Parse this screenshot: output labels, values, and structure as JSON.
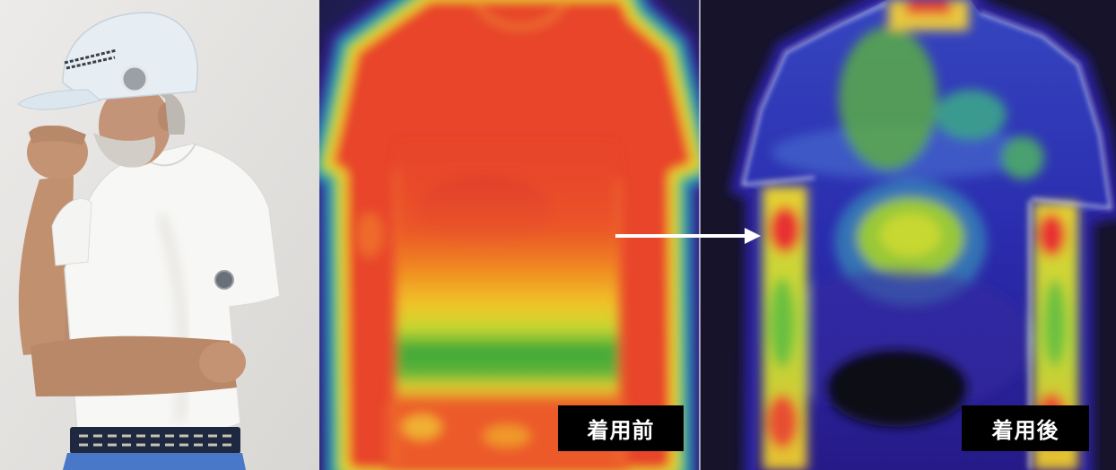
{
  "labels": {
    "before": "着用前",
    "after": "着用後"
  },
  "label_style": {
    "background": "#000000",
    "text_color": "#ffffff"
  },
  "icons": {
    "arrow": "arrow-right-icon"
  },
  "colors": {
    "arrow": "#ffffff",
    "thermal_hot": "#e8452c",
    "thermal_cool": "#2a2cae"
  }
}
